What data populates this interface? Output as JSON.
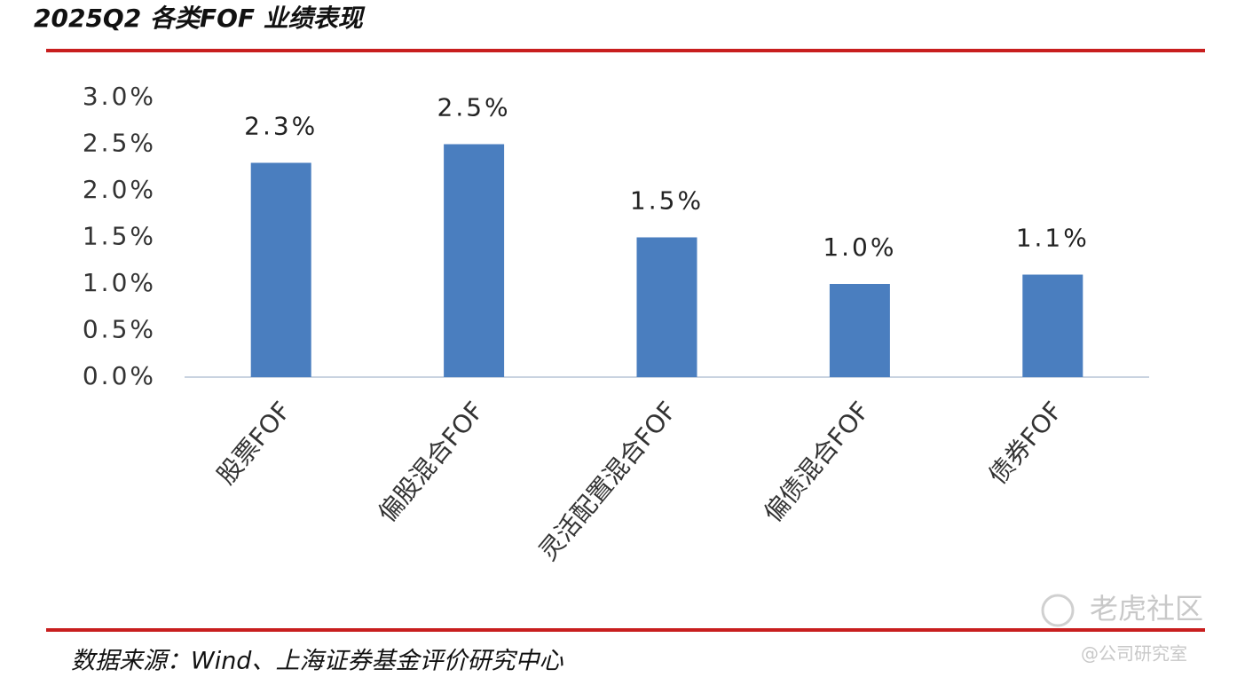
{
  "chart_data": {
    "type": "bar",
    "title": "2025Q2 各类FOF 业绩表现",
    "categories": [
      "股票FOF",
      "偏股混合FOF",
      "灵活配置混合FOF",
      "偏债混合FOF",
      "债券FOF"
    ],
    "values": [
      2.3,
      2.5,
      1.5,
      1.0,
      1.1
    ],
    "value_labels": [
      "2.3%",
      "2.5%",
      "1.5%",
      "1.0%",
      "1.1%"
    ],
    "color": "#4a7ebf",
    "ylim": [
      0,
      3
    ],
    "yticks": [
      {
        "value": 0,
        "label": "0.0%"
      },
      {
        "value": 0.5,
        "label": "0.5%"
      },
      {
        "value": 1,
        "label": "1.0%"
      },
      {
        "value": 1.5,
        "label": "1.5%"
      },
      {
        "value": 2,
        "label": "2.0%"
      },
      {
        "value": 2.5,
        "label": "2.5%"
      },
      {
        "value": 3,
        "label": "3.0%"
      }
    ],
    "grid": false,
    "source": "数据来源：Wind、上海证券基金评价研究中心",
    "watermark": [
      "老虎社区",
      "@公司研究室"
    ]
  }
}
